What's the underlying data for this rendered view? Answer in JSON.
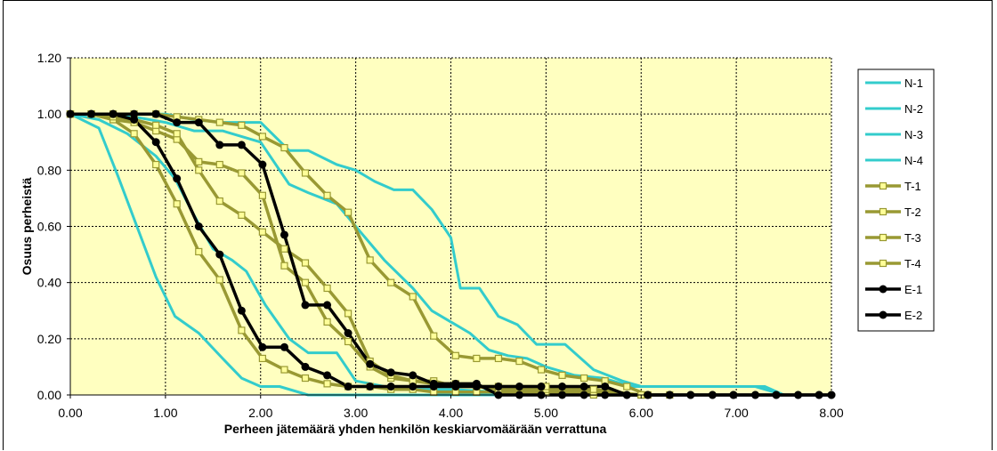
{
  "chart_data": {
    "type": "line",
    "title": "",
    "xlabel": "Perheen jätemäärä yhden henkilön keskiarvomäärään verrattuna",
    "ylabel": "Osuus perheistä",
    "xlim": [
      0,
      8
    ],
    "ylim": [
      0,
      1.2
    ],
    "x_ticks": [
      "0.00",
      "1.00",
      "2.00",
      "3.00",
      "4.00",
      "5.00",
      "6.00",
      "7.00",
      "8.00"
    ],
    "y_ticks": [
      "0.00",
      "0.20",
      "0.40",
      "0.60",
      "0.80",
      "1.00",
      "1.20"
    ],
    "grid": true,
    "plot_background": "#ffffc0",
    "legend_position": "right",
    "series": [
      {
        "name": "N-1",
        "color": "#33cccc",
        "marker": "none",
        "points": [
          [
            0,
            1
          ],
          [
            0.3,
            0.95
          ],
          [
            0.5,
            0.78
          ],
          [
            0.7,
            0.6
          ],
          [
            0.9,
            0.42
          ],
          [
            1.1,
            0.28
          ],
          [
            1.35,
            0.22
          ],
          [
            1.6,
            0.13
          ],
          [
            1.8,
            0.06
          ],
          [
            2.0,
            0.03
          ],
          [
            2.2,
            0.03
          ],
          [
            2.5,
            0
          ],
          [
            3,
            0
          ],
          [
            5,
            0
          ],
          [
            7,
            0
          ],
          [
            8,
            0
          ]
        ]
      },
      {
        "name": "N-2",
        "color": "#33cccc",
        "marker": "none",
        "points": [
          [
            0,
            1
          ],
          [
            0.3,
            0.98
          ],
          [
            0.6,
            0.93
          ],
          [
            0.9,
            0.85
          ],
          [
            1.1,
            0.77
          ],
          [
            1.3,
            0.64
          ],
          [
            1.5,
            0.52
          ],
          [
            1.7,
            0.48
          ],
          [
            1.85,
            0.44
          ],
          [
            2.05,
            0.32
          ],
          [
            2.3,
            0.2
          ],
          [
            2.5,
            0.15
          ],
          [
            2.8,
            0.15
          ],
          [
            3.0,
            0.05
          ],
          [
            3.3,
            0.03
          ],
          [
            3.6,
            0.02
          ],
          [
            4.0,
            0.02
          ],
          [
            5,
            0
          ],
          [
            8,
            0
          ]
        ]
      },
      {
        "name": "N-3",
        "color": "#33cccc",
        "marker": "none",
        "points": [
          [
            0,
            1
          ],
          [
            0.5,
            1
          ],
          [
            1.0,
            0.97
          ],
          [
            1.3,
            0.94
          ],
          [
            1.6,
            0.94
          ],
          [
            2.0,
            0.9
          ],
          [
            2.3,
            0.75
          ],
          [
            2.5,
            0.72
          ],
          [
            2.8,
            0.68
          ],
          [
            3.0,
            0.6
          ],
          [
            3.3,
            0.48
          ],
          [
            3.6,
            0.38
          ],
          [
            3.8,
            0.3
          ],
          [
            4.0,
            0.26
          ],
          [
            4.2,
            0.22
          ],
          [
            4.4,
            0.16
          ],
          [
            4.6,
            0.14
          ],
          [
            4.8,
            0.13
          ],
          [
            5.0,
            0.1
          ],
          [
            5.3,
            0.07
          ],
          [
            5.6,
            0.06
          ],
          [
            5.9,
            0.03
          ],
          [
            6.1,
            0.03
          ],
          [
            6.5,
            0.03
          ],
          [
            6.9,
            0.03
          ],
          [
            7.2,
            0.03
          ],
          [
            7.5,
            0
          ],
          [
            8,
            0
          ]
        ]
      },
      {
        "name": "N-4",
        "color": "#33cccc",
        "marker": "none",
        "points": [
          [
            0,
            1
          ],
          [
            0.5,
            1
          ],
          [
            1.0,
            1
          ],
          [
            1.3,
            0.98
          ],
          [
            1.6,
            0.97
          ],
          [
            2.0,
            0.97
          ],
          [
            2.3,
            0.87
          ],
          [
            2.5,
            0.87
          ],
          [
            2.8,
            0.82
          ],
          [
            3.0,
            0.8
          ],
          [
            3.2,
            0.76
          ],
          [
            3.4,
            0.73
          ],
          [
            3.6,
            0.73
          ],
          [
            3.8,
            0.66
          ],
          [
            4.0,
            0.56
          ],
          [
            4.1,
            0.38
          ],
          [
            4.3,
            0.38
          ],
          [
            4.5,
            0.28
          ],
          [
            4.7,
            0.25
          ],
          [
            4.9,
            0.18
          ],
          [
            5.2,
            0.18
          ],
          [
            5.5,
            0.09
          ],
          [
            5.8,
            0.05
          ],
          [
            6.0,
            0.03
          ],
          [
            6.5,
            0.03
          ],
          [
            7.3,
            0.03
          ],
          [
            7.5,
            0
          ],
          [
            8,
            0
          ]
        ]
      },
      {
        "name": "T-1",
        "color": "#999933",
        "marker": "square",
        "points": [
          [
            0,
            1
          ],
          [
            0.22,
            1
          ],
          [
            0.45,
            0.98
          ],
          [
            0.67,
            0.93
          ],
          [
            0.9,
            0.82
          ],
          [
            1.12,
            0.68
          ],
          [
            1.35,
            0.51
          ],
          [
            1.57,
            0.41
          ],
          [
            1.8,
            0.23
          ],
          [
            2.02,
            0.13
          ],
          [
            2.25,
            0.09
          ],
          [
            2.47,
            0.06
          ],
          [
            2.7,
            0.04
          ],
          [
            2.92,
            0.03
          ],
          [
            3.15,
            0.03
          ],
          [
            3.37,
            0.02
          ],
          [
            3.6,
            0.02
          ],
          [
            3.82,
            0.01
          ],
          [
            4.05,
            0.01
          ],
          [
            4.27,
            0.01
          ],
          [
            4.5,
            0.01
          ],
          [
            5,
            0.01
          ],
          [
            5.5,
            0
          ],
          [
            6,
            0
          ]
        ]
      },
      {
        "name": "T-2",
        "color": "#999933",
        "marker": "square",
        "points": [
          [
            0,
            1
          ],
          [
            0.22,
            1
          ],
          [
            0.45,
            0.98
          ],
          [
            0.67,
            0.97
          ],
          [
            0.9,
            0.94
          ],
          [
            1.12,
            0.91
          ],
          [
            1.35,
            0.83
          ],
          [
            1.57,
            0.82
          ],
          [
            1.8,
            0.79
          ],
          [
            2.02,
            0.71
          ],
          [
            2.25,
            0.46
          ],
          [
            2.47,
            0.4
          ],
          [
            2.7,
            0.26
          ],
          [
            2.92,
            0.19
          ],
          [
            3.15,
            0.1
          ],
          [
            3.37,
            0.06
          ],
          [
            3.6,
            0.05
          ],
          [
            3.82,
            0.05
          ],
          [
            4.05,
            0.03
          ],
          [
            4.27,
            0.03
          ],
          [
            4.5,
            0.02
          ],
          [
            5,
            0.02
          ],
          [
            5.5,
            0.01
          ],
          [
            6,
            0
          ]
        ]
      },
      {
        "name": "T-3",
        "color": "#999933",
        "marker": "square",
        "points": [
          [
            0,
            1
          ],
          [
            0.22,
            1
          ],
          [
            0.45,
            0.99
          ],
          [
            0.67,
            0.98
          ],
          [
            0.9,
            0.96
          ],
          [
            1.12,
            0.93
          ],
          [
            1.35,
            0.8
          ],
          [
            1.57,
            0.69
          ],
          [
            1.8,
            0.64
          ],
          [
            2.02,
            0.58
          ],
          [
            2.25,
            0.52
          ],
          [
            2.47,
            0.47
          ],
          [
            2.7,
            0.38
          ],
          [
            2.92,
            0.29
          ],
          [
            3.15,
            0.12
          ],
          [
            3.37,
            0.07
          ],
          [
            3.6,
            0.05
          ],
          [
            3.82,
            0.04
          ],
          [
            4.05,
            0.04
          ],
          [
            4.27,
            0.03
          ],
          [
            4.5,
            0.03
          ],
          [
            5,
            0.03
          ],
          [
            5.5,
            0.02
          ],
          [
            6,
            0
          ]
        ]
      },
      {
        "name": "T-4",
        "color": "#999933",
        "marker": "square",
        "points": [
          [
            0,
            1
          ],
          [
            0.22,
            1
          ],
          [
            0.45,
            1
          ],
          [
            0.67,
            1
          ],
          [
            0.9,
            1
          ],
          [
            1.12,
            0.99
          ],
          [
            1.35,
            0.98
          ],
          [
            1.57,
            0.97
          ],
          [
            1.8,
            0.96
          ],
          [
            2.02,
            0.92
          ],
          [
            2.25,
            0.88
          ],
          [
            2.47,
            0.79
          ],
          [
            2.7,
            0.71
          ],
          [
            2.92,
            0.65
          ],
          [
            3.15,
            0.48
          ],
          [
            3.37,
            0.4
          ],
          [
            3.6,
            0.35
          ],
          [
            3.82,
            0.21
          ],
          [
            4.05,
            0.14
          ],
          [
            4.27,
            0.13
          ],
          [
            4.5,
            0.13
          ],
          [
            4.72,
            0.12
          ],
          [
            4.95,
            0.09
          ],
          [
            5.17,
            0.07
          ],
          [
            5.4,
            0.06
          ],
          [
            5.62,
            0.05
          ],
          [
            5.85,
            0.03
          ],
          [
            6.07,
            0
          ],
          [
            6.3,
            0
          ]
        ]
      },
      {
        "name": "E-1",
        "color": "#000000",
        "marker": "circle",
        "points": [
          [
            0,
            1
          ],
          [
            0.22,
            1
          ],
          [
            0.45,
            1
          ],
          [
            0.67,
            0.98
          ],
          [
            0.9,
            0.9
          ],
          [
            1.12,
            0.77
          ],
          [
            1.35,
            0.6
          ],
          [
            1.57,
            0.5
          ],
          [
            1.8,
            0.3
          ],
          [
            2.02,
            0.17
          ],
          [
            2.25,
            0.17
          ],
          [
            2.47,
            0.1
          ],
          [
            2.7,
            0.07
          ],
          [
            2.92,
            0.03
          ],
          [
            3.15,
            0.03
          ],
          [
            3.37,
            0.03
          ],
          [
            3.6,
            0.03
          ],
          [
            3.82,
            0.03
          ],
          [
            4.05,
            0.03
          ],
          [
            4.27,
            0.03
          ],
          [
            4.5,
            0.03
          ],
          [
            4.72,
            0.03
          ],
          [
            4.95,
            0.03
          ],
          [
            5.17,
            0.03
          ],
          [
            5.4,
            0.03
          ],
          [
            5.62,
            0.03
          ],
          [
            5.85,
            0
          ],
          [
            6.07,
            0
          ],
          [
            6.3,
            0
          ],
          [
            6.52,
            0
          ],
          [
            6.75,
            0
          ],
          [
            6.97,
            0
          ],
          [
            7.2,
            0
          ],
          [
            7.42,
            0
          ],
          [
            7.65,
            0
          ],
          [
            7.87,
            0
          ],
          [
            8.0,
            0
          ]
        ]
      },
      {
        "name": "E-2",
        "color": "#000000",
        "marker": "circle",
        "points": [
          [
            0,
            1
          ],
          [
            0.22,
            1
          ],
          [
            0.45,
            1
          ],
          [
            0.67,
            1
          ],
          [
            0.9,
            1
          ],
          [
            1.12,
            0.97
          ],
          [
            1.35,
            0.97
          ],
          [
            1.57,
            0.89
          ],
          [
            1.8,
            0.89
          ],
          [
            2.02,
            0.82
          ],
          [
            2.25,
            0.57
          ],
          [
            2.47,
            0.32
          ],
          [
            2.7,
            0.32
          ],
          [
            2.92,
            0.22
          ],
          [
            3.15,
            0.11
          ],
          [
            3.37,
            0.08
          ],
          [
            3.6,
            0.07
          ],
          [
            3.82,
            0.04
          ],
          [
            4.05,
            0.04
          ],
          [
            4.27,
            0.04
          ],
          [
            4.5,
            0
          ],
          [
            4.72,
            0
          ],
          [
            4.95,
            0
          ],
          [
            5.17,
            0
          ],
          [
            5.4,
            0
          ],
          [
            5.62,
            0
          ],
          [
            5.85,
            0
          ],
          [
            6.07,
            0
          ],
          [
            6.3,
            0
          ],
          [
            6.52,
            0
          ],
          [
            6.75,
            0
          ],
          [
            6.97,
            0
          ],
          [
            7.2,
            0
          ],
          [
            7.42,
            0
          ],
          [
            7.65,
            0
          ],
          [
            7.87,
            0
          ],
          [
            8.0,
            0
          ]
        ]
      }
    ]
  }
}
